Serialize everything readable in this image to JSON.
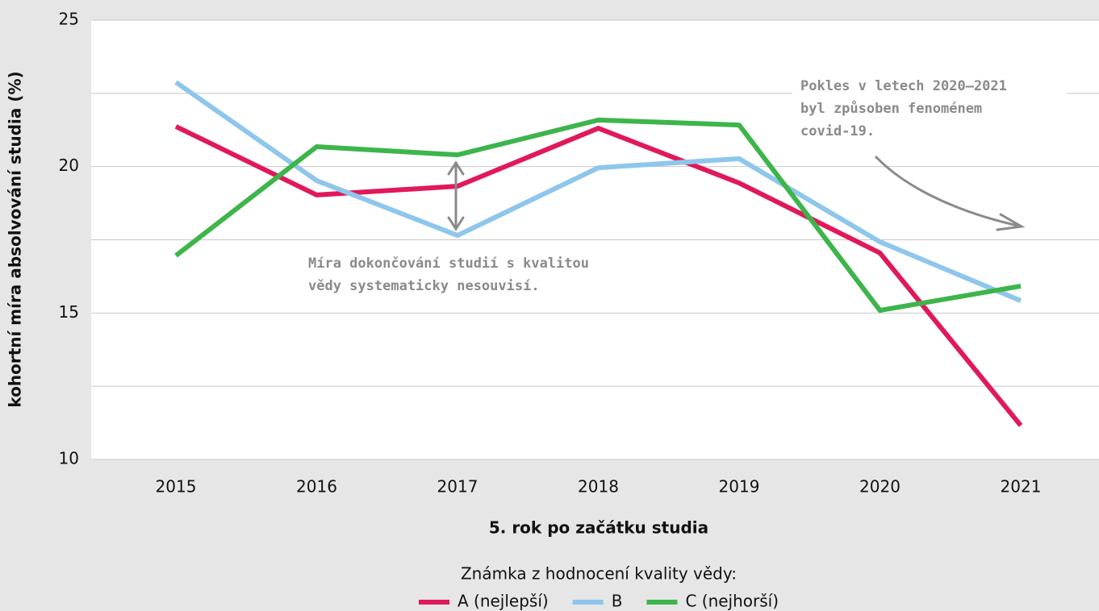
{
  "chart_data": {
    "type": "line",
    "x_label": "5. rok po začátku studia",
    "y_label": "kohortní míra absolvování studia (%)",
    "categories": [
      "2015",
      "2016",
      "2017",
      "2018",
      "2019",
      "2020",
      "2021"
    ],
    "series": [
      {
        "name": "A (nejlepší)",
        "color": "#e0195a",
        "values": [
          21.37,
          19.03,
          19.33,
          21.31,
          19.44,
          17.05,
          11.16
        ]
      },
      {
        "name": "B",
        "color": "#8ec6ec",
        "values": [
          22.88,
          19.52,
          17.65,
          19.96,
          20.27,
          17.43,
          15.42
        ]
      },
      {
        "name": "C (nejhorší)",
        "color": "#3db54a",
        "values": [
          16.96,
          20.68,
          20.4,
          21.59,
          21.42,
          15.09,
          15.92
        ]
      }
    ],
    "ylim": [
      10,
      25
    ],
    "yticks": [
      10,
      15,
      20,
      25
    ],
    "minor_yticks": [
      12.5,
      17.5,
      22.5
    ],
    "grid": true,
    "legend_title": "Známka z hodnocení kvality vědy:",
    "legend": "bottom",
    "annotations": [
      {
        "lines": [
          "Míra dokončování studií s kvalitou",
          "vědy systematicky nesouvisí."
        ]
      },
      {
        "lines": [
          "Pokles v letech 2020–2021",
          "byl způsoben fenoménem",
          "covid-19."
        ]
      }
    ]
  }
}
